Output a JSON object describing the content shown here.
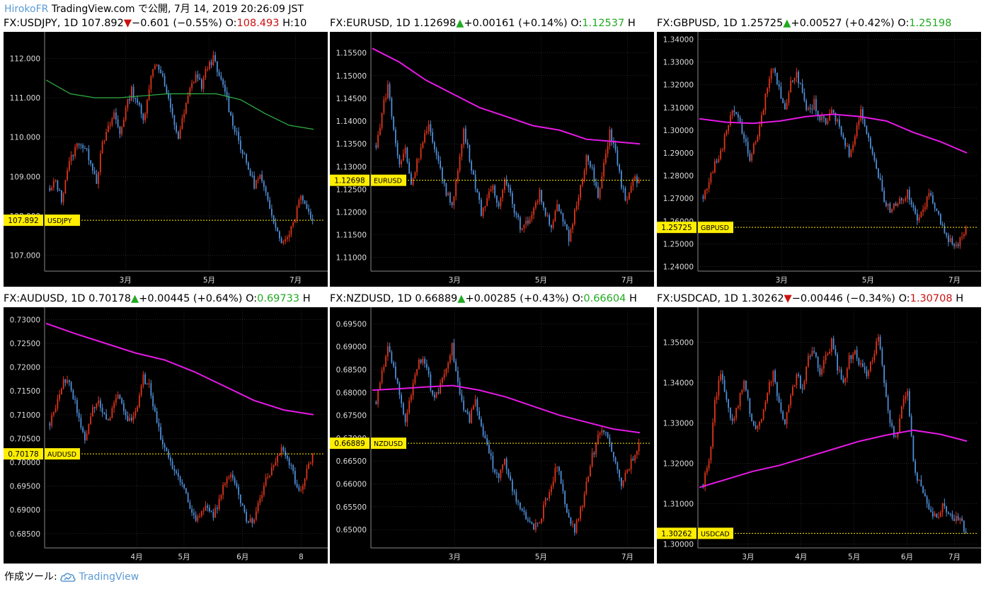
{
  "header": {
    "user": "HirokoFR",
    "text": "TradingView.com で公開, 7月 14, 2019 20:26:09 JST"
  },
  "footer": {
    "prefix": "作成ツール:",
    "brand": "TradingView",
    "icon": "tradingview-cloud-icon"
  },
  "colors": {
    "up_candle": "#e0361c",
    "down_candle": "#4f8fd9",
    "ma_green": "#2fb344",
    "ma_magenta": "#e619e6",
    "price_label": "#ffee00",
    "grid": "#3a3a3a",
    "background": "#000000"
  },
  "panels": [
    {
      "title": {
        "symbol": "FX:USDJPY",
        "tf": "1D",
        "price": "107.892",
        "dir": "down",
        "arrow": "▼",
        "change": "−0.601",
        "pct": "(−0.55%)",
        "o_label": "O:",
        "open": "108.493",
        "h_label": "H:10"
      },
      "chart_data": {
        "type": "candlestick",
        "ylim": [
          106.6,
          112.6
        ],
        "y_ticks": [
          "107.000",
          "108.000",
          "109.000",
          "110.000",
          "111.000",
          "112.000"
        ],
        "x_ticks": [
          {
            "label": "3月",
            "at": 0.29
          },
          {
            "label": "5月",
            "at": 0.59
          },
          {
            "label": "7月",
            "at": 0.9
          }
        ],
        "closes": [
          108.6,
          108.9,
          108.4,
          109.2,
          109.6,
          109.9,
          109.7,
          109.4,
          108.9,
          109.8,
          110.2,
          110.6,
          110.1,
          110.7,
          111.2,
          110.9,
          110.4,
          111.3,
          111.9,
          111.7,
          111.1,
          110.5,
          110.0,
          110.6,
          111.2,
          111.6,
          111.3,
          111.8,
          112.0,
          111.5,
          111.2,
          110.5,
          110.1,
          109.6,
          109.2,
          108.8,
          109.0,
          108.5,
          108.1,
          107.6,
          107.3,
          107.6,
          108.0,
          108.6,
          108.2,
          107.892
        ],
        "ma": {
          "name": "",
          "color": "green",
          "start": 111.45,
          "points": [
            111.45,
            111.1,
            111.0,
            111.0,
            111.05,
            111.1,
            111.1,
            111.1,
            110.95,
            110.6,
            110.3,
            110.2
          ]
        },
        "last_price": "107.892",
        "price_label": "USDJPY"
      }
    },
    {
      "title": {
        "symbol": "FX:EURUSD",
        "tf": "1D",
        "price": "1.12698",
        "dir": "up",
        "arrow": "▲",
        "change": "+0.00161",
        "pct": "(+0.14%)",
        "o_label": "O:",
        "open": "1.12537",
        "h_label": "H"
      },
      "chart_data": {
        "type": "candlestick",
        "ylim": [
          1.107,
          1.159
        ],
        "y_ticks": [
          "1.11000",
          "1.11500",
          "1.12000",
          "1.12500",
          "1.13000",
          "1.13500",
          "1.14000",
          "1.14500",
          "1.15000",
          "1.15500"
        ],
        "x_ticks": [
          {
            "label": "3月",
            "at": 0.3
          },
          {
            "label": "5月",
            "at": 0.61
          },
          {
            "label": "7月",
            "at": 0.92
          }
        ],
        "closes": [
          1.134,
          1.142,
          1.148,
          1.138,
          1.13,
          1.134,
          1.126,
          1.131,
          1.136,
          1.139,
          1.133,
          1.13,
          1.124,
          1.122,
          1.129,
          1.138,
          1.132,
          1.126,
          1.12,
          1.123,
          1.125,
          1.121,
          1.128,
          1.124,
          1.119,
          1.116,
          1.118,
          1.121,
          1.124,
          1.12,
          1.117,
          1.121,
          1.118,
          1.114,
          1.12,
          1.126,
          1.132,
          1.129,
          1.123,
          1.13,
          1.138,
          1.133,
          1.126,
          1.122,
          1.127,
          1.12698
        ],
        "ma": {
          "name": "",
          "color": "magenta",
          "points": [
            1.156,
            1.153,
            1.149,
            1.146,
            1.143,
            1.141,
            1.139,
            1.138,
            1.136,
            1.1355,
            1.135
          ]
        },
        "last_price": "1.12698",
        "price_label": "EURUSD"
      }
    },
    {
      "title": {
        "symbol": "FX:GBPUSD",
        "tf": "1D",
        "price": "1.25725",
        "dir": "up",
        "arrow": "▲",
        "change": "+0.00527",
        "pct": "(+0.42%)",
        "o_label": "O:",
        "open": "1.25198",
        "h_label": ""
      },
      "chart_data": {
        "type": "candlestick",
        "ylim": [
          1.238,
          1.342
        ],
        "y_ticks": [
          "1.24000",
          "1.25000",
          "1.26000",
          "1.27000",
          "1.28000",
          "1.29000",
          "1.30000",
          "1.31000",
          "1.32000",
          "1.33000",
          "1.34000"
        ],
        "x_ticks": [
          {
            "label": "3月",
            "at": 0.3
          },
          {
            "label": "5月",
            "at": 0.61
          },
          {
            "label": "7月",
            "at": 0.92
          }
        ],
        "closes": [
          1.27,
          1.278,
          1.285,
          1.29,
          1.3,
          1.31,
          1.306,
          1.296,
          1.288,
          1.295,
          1.305,
          1.32,
          1.328,
          1.318,
          1.31,
          1.32,
          1.326,
          1.315,
          1.308,
          1.312,
          1.305,
          1.303,
          1.308,
          1.304,
          1.296,
          1.29,
          1.298,
          1.308,
          1.3,
          1.29,
          1.28,
          1.27,
          1.265,
          1.268,
          1.27,
          1.272,
          1.265,
          1.26,
          1.268,
          1.272,
          1.265,
          1.258,
          1.252,
          1.248,
          1.252,
          1.25725
        ],
        "ma": {
          "name": "",
          "color": "magenta",
          "points": [
            1.305,
            1.3035,
            1.303,
            1.304,
            1.306,
            1.307,
            1.306,
            1.304,
            1.299,
            1.295,
            1.29
          ]
        },
        "last_price": "1.25725",
        "price_label": "GBPUSD"
      }
    },
    {
      "title": {
        "symbol": "FX:AUDUSD",
        "tf": "1D",
        "price": "0.70178",
        "dir": "up",
        "arrow": "▲",
        "change": "+0.00445",
        "pct": "(+0.64%)",
        "o_label": "O:",
        "open": "0.69733",
        "h_label": "H"
      },
      "chart_data": {
        "type": "candlestick",
        "ylim": [
          0.682,
          0.732
        ],
        "y_ticks": [
          "0.68500",
          "0.69000",
          "0.69500",
          "0.70000",
          "0.70500",
          "0.71000",
          "0.71500",
          "0.72000",
          "0.72500",
          "0.73000"
        ],
        "x_ticks": [
          {
            "label": "4月",
            "at": 0.33
          },
          {
            "label": "5月",
            "at": 0.5
          },
          {
            "label": "6月",
            "at": 0.71
          },
          {
            "label": "8",
            "at": 0.92
          }
        ],
        "closes": [
          0.708,
          0.712,
          0.716,
          0.718,
          0.714,
          0.709,
          0.705,
          0.71,
          0.713,
          0.711,
          0.708,
          0.712,
          0.714,
          0.71,
          0.708,
          0.712,
          0.718,
          0.716,
          0.71,
          0.705,
          0.702,
          0.699,
          0.697,
          0.694,
          0.69,
          0.688,
          0.69,
          0.691,
          0.689,
          0.692,
          0.696,
          0.698,
          0.694,
          0.69,
          0.687,
          0.688,
          0.692,
          0.696,
          0.699,
          0.701,
          0.703,
          0.7,
          0.696,
          0.694,
          0.698,
          0.70178
        ],
        "ma": {
          "name": "",
          "color": "magenta",
          "points": [
            0.7292,
            0.727,
            0.725,
            0.723,
            0.7215,
            0.719,
            0.716,
            0.713,
            0.711,
            0.71
          ]
        },
        "last_price": "0.70178",
        "price_label": "AUDUSD"
      }
    },
    {
      "title": {
        "symbol": "FX:NZDUSD",
        "tf": "1D",
        "price": "0.66889",
        "dir": "up",
        "arrow": "▲",
        "change": "+0.00285",
        "pct": "(+0.43%)",
        "o_label": "O:",
        "open": "0.66604",
        "h_label": "H"
      },
      "chart_data": {
        "type": "candlestick",
        "ylim": [
          0.646,
          0.698
        ],
        "y_ticks": [
          "0.65000",
          "0.65500",
          "0.66000",
          "0.66500",
          "0.67000",
          "0.67500",
          "0.68000",
          "0.68500",
          "0.69000",
          "0.69500"
        ],
        "x_ticks": [
          {
            "label": "3月",
            "at": 0.3
          },
          {
            "label": "5月",
            "at": 0.61
          },
          {
            "label": "7月",
            "at": 0.92
          }
        ],
        "closes": [
          0.678,
          0.684,
          0.69,
          0.686,
          0.679,
          0.674,
          0.68,
          0.686,
          0.688,
          0.683,
          0.678,
          0.682,
          0.686,
          0.69,
          0.682,
          0.676,
          0.674,
          0.678,
          0.672,
          0.668,
          0.664,
          0.662,
          0.666,
          0.66,
          0.656,
          0.654,
          0.652,
          0.65,
          0.652,
          0.656,
          0.66,
          0.664,
          0.658,
          0.652,
          0.65,
          0.654,
          0.66,
          0.666,
          0.67,
          0.672,
          0.668,
          0.664,
          0.66,
          0.663,
          0.666,
          0.66889
        ],
        "ma": {
          "name": "",
          "color": "magenta",
          "points": [
            0.6805,
            0.6808,
            0.6812,
            0.6815,
            0.6805,
            0.679,
            0.677,
            0.675,
            0.6735,
            0.672,
            0.6712
          ]
        },
        "last_price": "0.66889",
        "price_label": "NZDUSD"
      }
    },
    {
      "title": {
        "symbol": "FX:USDCAD",
        "tf": "1D",
        "price": "1.30262",
        "dir": "down",
        "arrow": "▼",
        "change": "−0.00446",
        "pct": "(−0.34%)",
        "o_label": "O:",
        "open": "1.30708",
        "h_label": "H"
      },
      "chart_data": {
        "type": "candlestick",
        "ylim": [
          1.299,
          1.358
        ],
        "y_ticks": [
          "1.30000",
          "1.31000",
          "1.32000",
          "1.33000",
          "1.34000",
          "1.35000"
        ],
        "x_ticks": [
          {
            "label": "3月",
            "at": 0.18
          },
          {
            "label": "4月",
            "at": 0.37
          },
          {
            "label": "5月",
            "at": 0.56
          },
          {
            "label": "6月",
            "at": 0.75
          },
          {
            "label": "7月",
            "at": 0.92
          }
        ],
        "closes": [
          1.315,
          1.32,
          1.335,
          1.342,
          1.336,
          1.33,
          1.335,
          1.34,
          1.333,
          1.328,
          1.332,
          1.338,
          1.342,
          1.335,
          1.33,
          1.336,
          1.342,
          1.338,
          1.346,
          1.348,
          1.342,
          1.346,
          1.35,
          1.344,
          1.34,
          1.346,
          1.348,
          1.344,
          1.342,
          1.346,
          1.352,
          1.34,
          1.33,
          1.326,
          1.334,
          1.338,
          1.32,
          1.315,
          1.312,
          1.308,
          1.306,
          1.31,
          1.308,
          1.306,
          1.307,
          1.30262
        ],
        "ma": {
          "name": "",
          "color": "magenta",
          "points": [
            1.314,
            1.316,
            1.318,
            1.3195,
            1.3215,
            1.3235,
            1.3255,
            1.327,
            1.3282,
            1.3272,
            1.3255
          ]
        },
        "last_price": "1.30262",
        "price_label": "USDCAD"
      }
    }
  ]
}
